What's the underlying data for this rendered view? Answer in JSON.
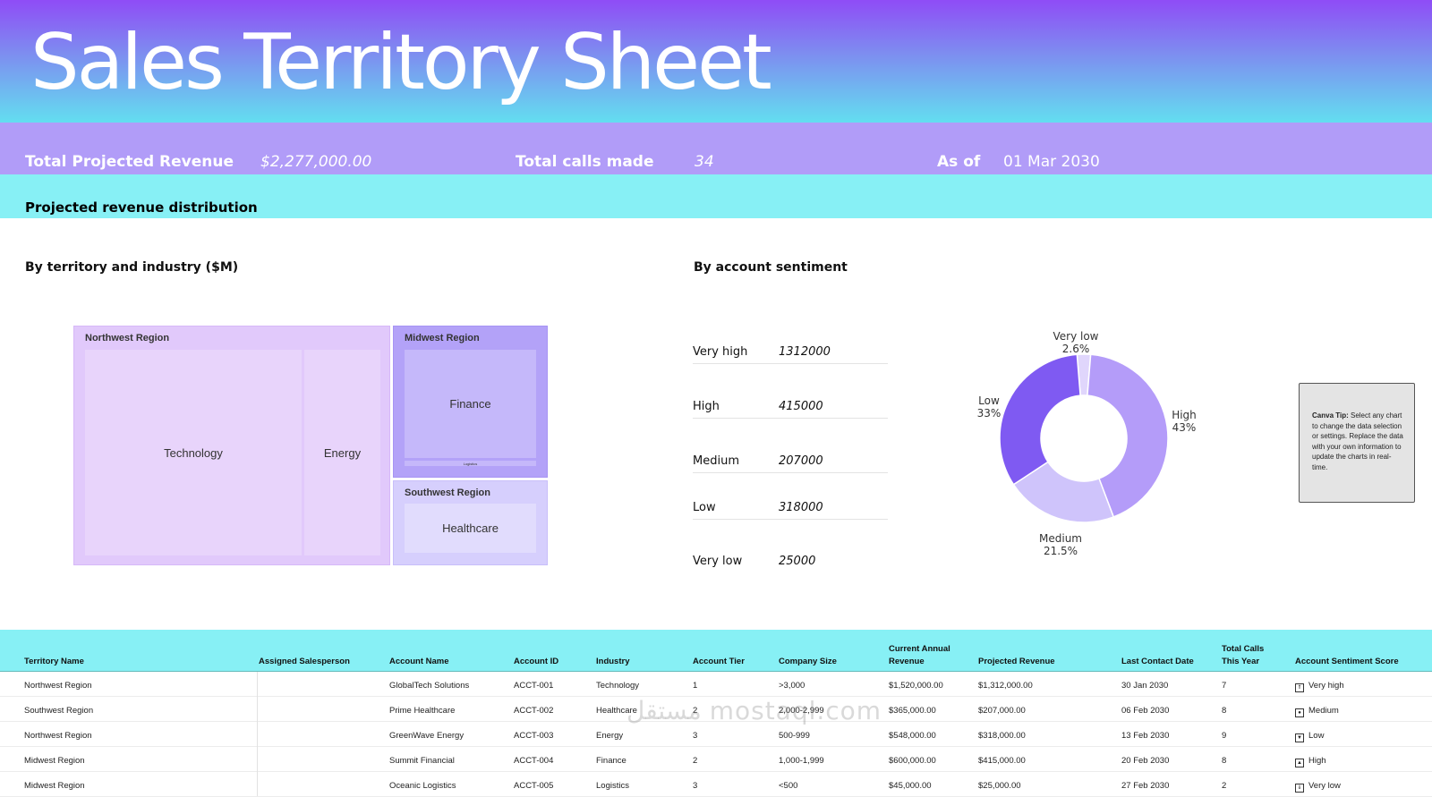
{
  "header": {
    "title": "Sales Territory Sheet"
  },
  "stats": {
    "revenue_label": "Total Projected Revenue",
    "revenue_value": "$2,277,000.00",
    "calls_label": "Total calls made",
    "calls_value": "34",
    "asof_label": "As of",
    "asof_value": "01 Mar 2030"
  },
  "section_title": "Projected revenue distribution",
  "treemap": {
    "title": "By territory and industry ($M)",
    "regions": [
      {
        "name": "Northwest Region",
        "industries": [
          "Technology",
          "Energy"
        ]
      },
      {
        "name": "Midwest Region",
        "industries": [
          "Finance",
          "Logistics"
        ]
      },
      {
        "name": "Southwest Region",
        "industries": [
          "Healthcare"
        ]
      }
    ]
  },
  "sentiment": {
    "title": "By account sentiment",
    "rows": [
      {
        "label": "Very high",
        "value": "1312000"
      },
      {
        "label": "High",
        "value": "415000"
      },
      {
        "label": "Medium",
        "value": "207000"
      },
      {
        "label": "Low",
        "value": "318000"
      },
      {
        "label": "Very low",
        "value": "25000"
      }
    ]
  },
  "chart_data": {
    "type": "pie",
    "title": "By account sentiment",
    "slices": [
      {
        "label": "High",
        "value": 43,
        "display": "43%",
        "color": "#b49cf9"
      },
      {
        "label": "Medium",
        "value": 21.5,
        "display": "21.5%",
        "color": "#cfc4fb"
      },
      {
        "label": "Low",
        "value": 33,
        "display": "33%",
        "color": "#7f5af2"
      },
      {
        "label": "Very low",
        "value": 2.6,
        "display": "2.6%",
        "color": "#e0d6fc"
      }
    ]
  },
  "tip": {
    "bold": "Canva Tip:",
    "text": "Select any chart to change the data selection or settings. Replace the data with your own information to update the charts in real-time."
  },
  "table": {
    "headers": {
      "territory": "Territory Name",
      "salesperson": "Assigned Salesperson",
      "account_name": "Account Name",
      "account_id": "Account ID",
      "industry": "Industry",
      "tier": "Account Tier",
      "size": "Company Size",
      "current_rev_1": "Current Annual",
      "current_rev_2": "Revenue",
      "projected": "Projected Revenue",
      "last_contact": "Last Contact Date",
      "calls_1": "Total Calls",
      "calls_2": "This Year",
      "sentiment": "Account Sentiment Score"
    },
    "rows": [
      {
        "territory": "Northwest Region",
        "salesperson": "",
        "account_name": "GlobalTech Solutions",
        "account_id": "ACCT-001",
        "industry": "Technology",
        "tier": "1",
        "size": ">3,000",
        "current": "$1,520,000.00",
        "projected": "$1,312,000.00",
        "last_contact": "30 Jan 2030",
        "calls": "7",
        "sentiment": "Very high",
        "icon": "⇑"
      },
      {
        "territory": "Southwest Region",
        "salesperson": "",
        "account_name": "Prime Healthcare",
        "account_id": "ACCT-002",
        "industry": "Healthcare",
        "tier": "2",
        "size": "2,000-2,999",
        "current": "$365,000.00",
        "projected": "$207,000.00",
        "last_contact": "06 Feb 2030",
        "calls": "8",
        "sentiment": "Medium",
        "icon": "●"
      },
      {
        "territory": "Northwest Region",
        "salesperson": "",
        "account_name": "GreenWave Energy",
        "account_id": "ACCT-003",
        "industry": "Energy",
        "tier": "3",
        "size": "500-999",
        "current": "$548,000.00",
        "projected": "$318,000.00",
        "last_contact": "13 Feb 2030",
        "calls": "9",
        "sentiment": "Low",
        "icon": "▼"
      },
      {
        "territory": "Midwest Region",
        "salesperson": "",
        "account_name": "Summit Financial",
        "account_id": "ACCT-004",
        "industry": "Finance",
        "tier": "2",
        "size": "1,000-1,999",
        "current": "$600,000.00",
        "projected": "$415,000.00",
        "last_contact": "20 Feb 2030",
        "calls": "8",
        "sentiment": "High",
        "icon": "▲"
      },
      {
        "territory": "Midwest Region",
        "salesperson": "",
        "account_name": "Oceanic Logistics",
        "account_id": "ACCT-005",
        "industry": "Logistics",
        "tier": "3",
        "size": "<500",
        "current": "$45,000.00",
        "projected": "$25,000.00",
        "last_contact": "27 Feb 2030",
        "calls": "2",
        "sentiment": "Very low",
        "icon": "⇓"
      }
    ]
  },
  "watermark": "مستقل mostaql.com"
}
